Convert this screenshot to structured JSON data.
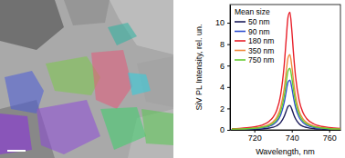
{
  "chart_data": {
    "type": "line",
    "y_label": "SiV PL Intensity, rel. un.",
    "x_label": "Wavelength, nm",
    "legend_title": "Mean size",
    "legend": "upper left",
    "x": [
      708,
      712,
      716,
      720,
      724,
      728,
      730,
      732,
      734,
      736,
      737,
      738,
      739,
      740,
      741,
      742,
      744,
      746,
      748,
      752,
      756,
      760,
      766
    ],
    "series": [
      {
        "name": "50 nm",
        "color": "#1c1c5a",
        "values": [
          0.02,
          0.03,
          0.04,
          0.06,
          0.09,
          0.17,
          0.24,
          0.38,
          0.67,
          1.27,
          1.74,
          2.18,
          2.28,
          1.94,
          1.45,
          1.04,
          0.56,
          0.33,
          0.22,
          0.11,
          0.07,
          0.04,
          0.03
        ]
      },
      {
        "name": "90 nm",
        "color": "#3050d0",
        "values": [
          0.04,
          0.06,
          0.08,
          0.12,
          0.19,
          0.34,
          0.5,
          0.78,
          1.36,
          2.59,
          3.56,
          4.46,
          4.65,
          3.96,
          2.96,
          2.12,
          1.14,
          0.68,
          0.44,
          0.23,
          0.14,
          0.09,
          0.06
        ]
      },
      {
        "name": "180 nm",
        "color": "#e8202a",
        "values": [
          0.11,
          0.14,
          0.19,
          0.28,
          0.44,
          0.81,
          1.18,
          1.85,
          3.22,
          6.13,
          8.4,
          10.52,
          10.99,
          9.35,
          6.99,
          5.02,
          2.7,
          1.61,
          1.04,
          0.53,
          0.32,
          0.21,
          0.13
        ]
      },
      {
        "name": "350 nm",
        "color": "#f08a3c",
        "values": [
          0.07,
          0.09,
          0.12,
          0.18,
          0.28,
          0.52,
          0.75,
          1.19,
          2.06,
          3.92,
          5.37,
          6.73,
          7.03,
          5.98,
          4.47,
          3.21,
          1.73,
          1.03,
          0.67,
          0.34,
          0.21,
          0.13,
          0.09
        ]
      },
      {
        "name": "750 nm",
        "color": "#66cc33",
        "values": [
          0.06,
          0.07,
          0.1,
          0.15,
          0.23,
          0.42,
          0.61,
          0.97,
          1.68,
          3.2,
          4.39,
          5.5,
          5.74,
          4.88,
          3.65,
          2.62,
          1.41,
          0.84,
          0.55,
          0.28,
          0.17,
          0.11,
          0.07
        ]
      }
    ],
    "xlim": [
      707,
      766
    ],
    "xticks": [
      720,
      740,
      760
    ],
    "ylim": [
      0,
      11.7
    ],
    "yticks": [
      0,
      2,
      4,
      6,
      8,
      10
    ]
  }
}
